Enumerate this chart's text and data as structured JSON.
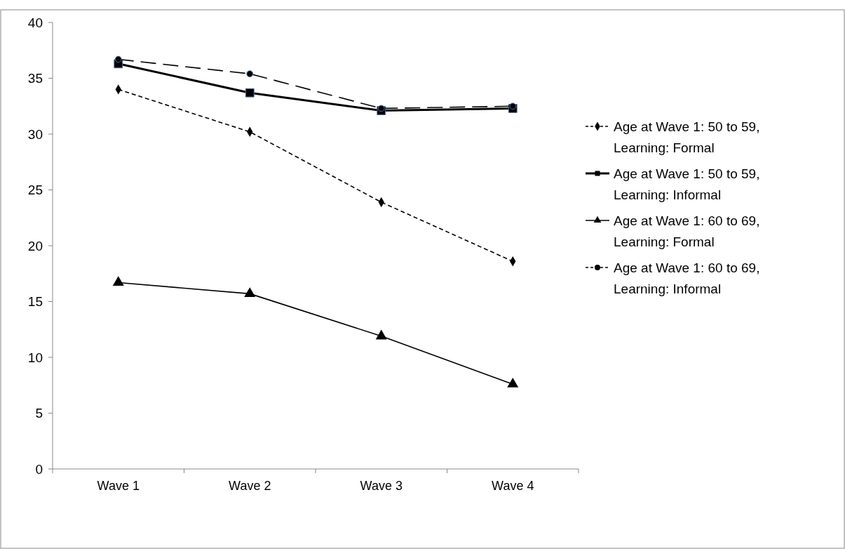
{
  "chart_data": {
    "type": "line",
    "categories": [
      "Wave 1",
      "Wave 2",
      "Wave 3",
      "Wave 4"
    ],
    "ylim": [
      0,
      40
    ],
    "yticks": [
      0,
      5,
      10,
      15,
      20,
      25,
      30,
      35,
      40
    ],
    "grid": false,
    "legend": "right",
    "series": [
      {
        "name": "Age at Wave 1: 50 to 59, Learning: Formal",
        "color": "#000000",
        "marker": "diamond",
        "line_style": "dashed",
        "values": [
          34.0,
          30.2,
          23.9,
          18.6
        ]
      },
      {
        "name": "Age at Wave 1: 50 to 59, Learning: Informal",
        "color": "#000000",
        "marker": "square",
        "line_style": "solid",
        "values": [
          36.3,
          33.7,
          32.1,
          32.3
        ]
      },
      {
        "name": "Age at Wave 1: 60 to 69, Learning: Formal",
        "color": "#000000",
        "marker": "triangle",
        "line_style": "solid",
        "values": [
          16.7,
          15.7,
          11.9,
          7.6
        ]
      },
      {
        "name": "Age at Wave 1: 60 to 69, Learning: Informal",
        "color": "#000000",
        "marker": "circle",
        "line_style": "dashed",
        "values": [
          36.7,
          35.4,
          32.3,
          32.5
        ]
      }
    ]
  }
}
